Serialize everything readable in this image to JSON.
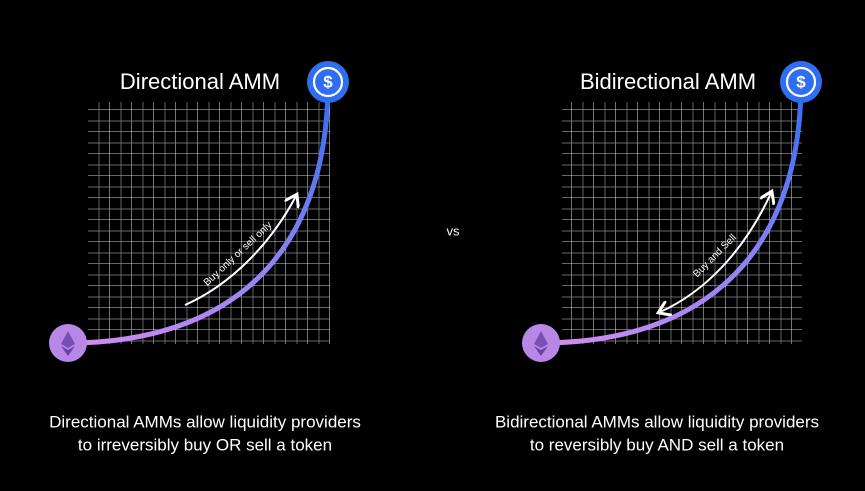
{
  "panels": [
    {
      "title": "Directional AMM",
      "arrow_label": "Buy only or sell only",
      "caption": [
        "Directional AMMs allow liquidity providers",
        "to irreversibly buy OR sell a token"
      ]
    },
    {
      "title": "Bidirectional AMM",
      "arrow_label": "Buy and Sell",
      "caption": [
        "Bidirectional AMMs allow liquidity providers",
        "to reversibly buy AND sell a token"
      ]
    }
  ],
  "separator": "vs"
}
